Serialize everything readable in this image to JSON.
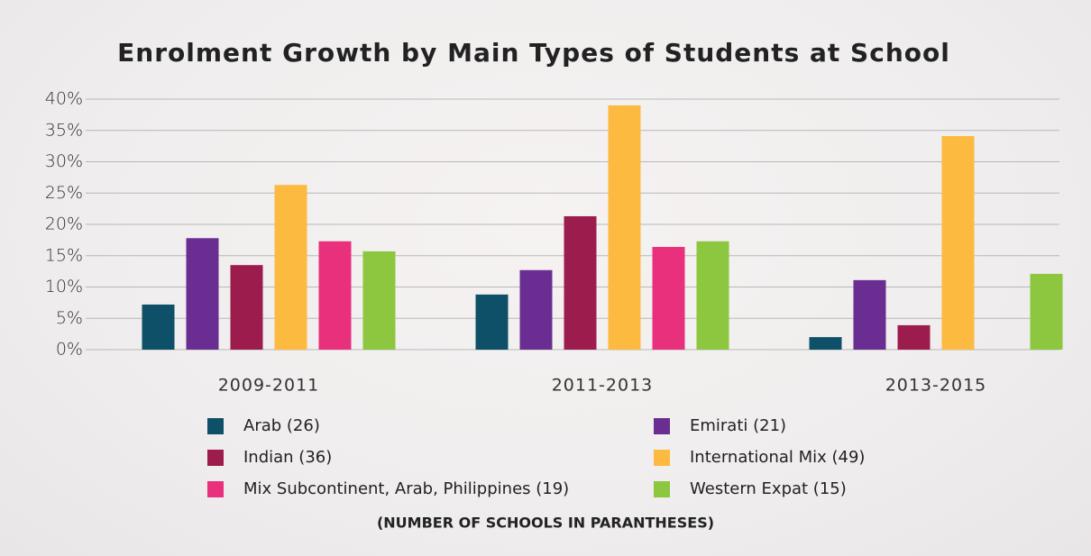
{
  "chart_data": {
    "type": "bar",
    "title": "Enrolment Growth by Main Types of Students at School",
    "note": "(NUMBER OF SCHOOLS IN PARANTHESES)",
    "categories": [
      "2009-2011",
      "2011-2013",
      "2013-2015"
    ],
    "series": [
      {
        "name": "Arab (26)",
        "color": "#0e5068",
        "values": [
          7.2,
          8.8,
          2.0
        ]
      },
      {
        "name": "Emirati (21)",
        "color": "#6a2e92",
        "values": [
          17.8,
          12.7,
          11.1
        ]
      },
      {
        "name": "Indian (36)",
        "color": "#9c1c4e",
        "values": [
          13.5,
          21.3,
          3.9
        ]
      },
      {
        "name": "International Mix (49)",
        "color": "#fdba40",
        "values": [
          26.3,
          39.0,
          34.1
        ]
      },
      {
        "name": "Mix Subcontinent, Arab, Philippines (19)",
        "color": "#e8307c",
        "values": [
          17.3,
          16.4,
          0
        ]
      },
      {
        "name": "Western Expat (15)",
        "color": "#8dc63f",
        "values": [
          15.7,
          17.3,
          12.1
        ]
      }
    ],
    "ylim": [
      0,
      40
    ],
    "yticks": [
      {
        "value": 0,
        "label": "0%"
      },
      {
        "value": 5,
        "label": "5%"
      },
      {
        "value": 10,
        "label": "10%"
      },
      {
        "value": 15,
        "label": "15%"
      },
      {
        "value": 20,
        "label": "20%"
      },
      {
        "value": 25,
        "label": "25%"
      },
      {
        "value": 30,
        "label": "30%"
      },
      {
        "value": 35,
        "label": "35%"
      },
      {
        "value": 40,
        "label": "40%"
      }
    ],
    "grid": true
  }
}
